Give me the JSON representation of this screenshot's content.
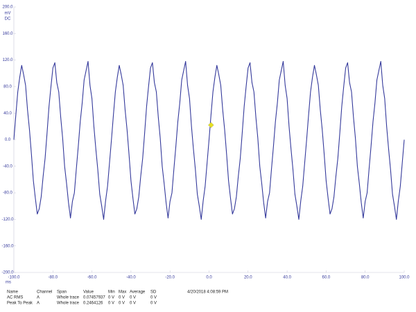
{
  "chart_data": {
    "type": "line",
    "y_unit": "mV",
    "y_coupling": "DC",
    "x_unit": "ms",
    "x": [
      -100,
      -99,
      -98,
      -97,
      -96,
      -95,
      -94,
      -93,
      -92,
      -91,
      -90,
      -89,
      -88,
      -87,
      -86,
      -85,
      -84,
      -83,
      -82,
      -81,
      -80,
      -79,
      -78,
      -77,
      -76,
      -75,
      -74,
      -73,
      -72,
      -71,
      -70,
      -69,
      -68,
      -67,
      -66,
      -65,
      -64,
      -63,
      -62,
      -61,
      -60,
      -59,
      -58,
      -57,
      -56,
      -55,
      -54,
      -53,
      -52,
      -51,
      -50,
      -49,
      -48,
      -47,
      -46,
      -45,
      -44,
      -43,
      -42,
      -41,
      -40,
      -39,
      -38,
      -37,
      -36,
      -35,
      -34,
      -33,
      -32,
      -31,
      -30,
      -29,
      -28,
      -27,
      -26,
      -25,
      -24,
      -23,
      -22,
      -21,
      -20,
      -19,
      -18,
      -17,
      -16,
      -15,
      -14,
      -13,
      -12,
      -11,
      -10,
      -9,
      -8,
      -7,
      -6,
      -5,
      -4,
      -3,
      -2,
      -1,
      0,
      1,
      2,
      3,
      4,
      5,
      6,
      7,
      8,
      9,
      10,
      11,
      12,
      13,
      14,
      15,
      16,
      17,
      18,
      19,
      20,
      21,
      22,
      23,
      24,
      25,
      26,
      27,
      28,
      29,
      30,
      31,
      32,
      33,
      34,
      35,
      36,
      37,
      38,
      39,
      40,
      41,
      42,
      43,
      44,
      45,
      46,
      47,
      48,
      49,
      50,
      51,
      52,
      53,
      54,
      55,
      56,
      57,
      58,
      59,
      60,
      61,
      62,
      63,
      64,
      65,
      66,
      67,
      68,
      69,
      70,
      71,
      72,
      73,
      74,
      75,
      76,
      77,
      78,
      79,
      80,
      81,
      82,
      83,
      84,
      85,
      86,
      87,
      88,
      89,
      90,
      91,
      92,
      93,
      94,
      95,
      96,
      97,
      98,
      99,
      100
    ],
    "series": [
      {
        "name": "A",
        "color": "#34399b",
        "values": [
          0,
          37,
          72,
          94,
          112,
          98,
          82,
          45,
          15,
          -22,
          -62,
          -88,
          -112,
          -104,
          -86,
          -55,
          -28,
          10,
          50,
          80,
          108,
          116,
          86,
          72,
          34,
          2,
          -40,
          -66,
          -95,
          -118,
          -93,
          -80,
          -44,
          -10,
          27,
          55,
          90,
          104,
          118,
          82,
          62,
          20,
          -14,
          -45,
          -82,
          -100,
          -120,
          -92,
          -70,
          -35,
          0,
          37,
          72,
          94,
          112,
          98,
          82,
          45,
          15,
          -22,
          -62,
          -88,
          -112,
          -104,
          -86,
          -55,
          -28,
          10,
          50,
          80,
          108,
          116,
          86,
          72,
          34,
          2,
          -40,
          -66,
          -95,
          -118,
          -93,
          -80,
          -44,
          -10,
          27,
          55,
          90,
          104,
          118,
          82,
          62,
          20,
          -14,
          -45,
          -82,
          -100,
          -120,
          -92,
          -70,
          -35,
          0,
          37,
          72,
          94,
          112,
          98,
          82,
          45,
          15,
          -22,
          -62,
          -88,
          -112,
          -104,
          -86,
          -55,
          -28,
          10,
          50,
          80,
          108,
          116,
          86,
          72,
          34,
          2,
          -40,
          -66,
          -95,
          -118,
          -93,
          -80,
          -44,
          -10,
          27,
          55,
          90,
          104,
          118,
          82,
          62,
          20,
          -14,
          -45,
          -82,
          -100,
          -120,
          -92,
          -70,
          -35,
          0,
          37,
          72,
          94,
          112,
          98,
          82,
          45,
          15,
          -22,
          -62,
          -88,
          -112,
          -104,
          -86,
          -55,
          -28,
          10,
          50,
          80,
          108,
          116,
          86,
          72,
          34,
          2,
          -40,
          -66,
          -95,
          -118,
          -93,
          -80,
          -44,
          -10,
          27,
          55,
          90,
          104,
          118,
          82,
          62,
          20,
          -14,
          -45,
          -82,
          -100,
          -120,
          -92,
          -70,
          -35,
          0
        ]
      }
    ],
    "marker": {
      "x": 1,
      "y": 22,
      "color": "#e6e020"
    },
    "xlim": [
      -100,
      100
    ],
    "ylim": [
      -200,
      200
    ],
    "xticks": [
      {
        "value": -100,
        "label": "-100.0"
      },
      {
        "value": -80,
        "label": "-80.0"
      },
      {
        "value": -60,
        "label": "-60.0"
      },
      {
        "value": -40,
        "label": "-40.0"
      },
      {
        "value": -20,
        "label": "-20.0"
      },
      {
        "value": 0,
        "label": "0.0"
      },
      {
        "value": 20,
        "label": "20.0"
      },
      {
        "value": 40,
        "label": "40.0"
      },
      {
        "value": 60,
        "label": "60.0"
      },
      {
        "value": 80,
        "label": "80.0"
      },
      {
        "value": 100,
        "label": "100.0"
      }
    ],
    "yticks": [
      {
        "value": 200,
        "label": "200.0"
      },
      {
        "value": 160,
        "label": "160.0"
      },
      {
        "value": 120,
        "label": "120.0"
      },
      {
        "value": 80,
        "label": "80.0"
      },
      {
        "value": 40,
        "label": "40.0"
      },
      {
        "value": 0,
        "label": "0.0"
      },
      {
        "value": -40,
        "label": "-40.0"
      },
      {
        "value": -80,
        "label": "-80.0"
      },
      {
        "value": -120,
        "label": "-120.0"
      },
      {
        "value": -160,
        "label": "-160.0"
      },
      {
        "value": -200,
        "label": "-200.0"
      }
    ],
    "grid": false
  },
  "measurements": {
    "columns": [
      "Name",
      "Channel",
      "Span",
      "Value",
      "Min",
      "Max",
      "Average",
      "SD"
    ],
    "rows": [
      [
        "AC RMS",
        "A",
        "Whole trace",
        "0.07457937",
        "0 V",
        "0 V",
        "0 V",
        "0 V"
      ],
      [
        "Peak To Peak",
        "A",
        "Whole trace",
        "0.2464126",
        "0 V",
        "0 V",
        "0 V",
        "0 V"
      ]
    ]
  },
  "timestamp": "4/20/2018 4:08:59 PM"
}
